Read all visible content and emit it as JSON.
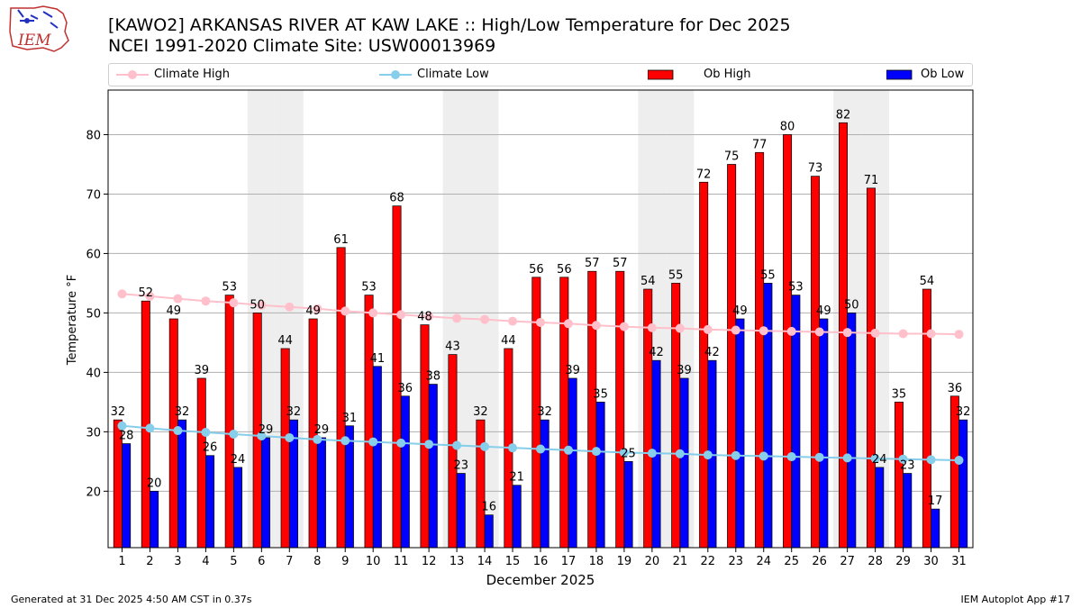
{
  "header": {
    "logo_text": "IEM",
    "title_line1": "[KAWO2] ARKANSAS RIVER  AT KAW LAKE :: High/Low Temperature for Dec 2025",
    "title_line2": "NCEI 1991-2020 Climate Site: USW00013969"
  },
  "legend": {
    "items": [
      {
        "label": "Climate High"
      },
      {
        "label": "Climate Low"
      },
      {
        "label": "Ob High"
      },
      {
        "label": "Ob Low"
      }
    ]
  },
  "footer": {
    "generated": "Generated at 31 Dec 2025 4:50 AM CST in 0.37s",
    "app": "IEM Autoplot App #17"
  },
  "colors": {
    "ob_high": "#ff0000",
    "ob_low": "#0000ff",
    "climate_high": "#ffc0cb",
    "climate_low": "#87ceeb",
    "weekend_shade": "#eeeeee"
  },
  "chart_data": {
    "type": "bar",
    "xlabel": "December 2025",
    "ylabel": "Temperature °F",
    "ylim": [
      10.5,
      87.5
    ],
    "yticks": [
      20,
      30,
      40,
      50,
      60,
      70,
      80
    ],
    "grid": "horizontal",
    "legend_placement": "top",
    "categories": [
      "1",
      "2",
      "3",
      "4",
      "5",
      "6",
      "7",
      "8",
      "9",
      "10",
      "11",
      "12",
      "13",
      "14",
      "15",
      "16",
      "17",
      "18",
      "19",
      "20",
      "21",
      "22",
      "23",
      "24",
      "25",
      "26",
      "27",
      "28",
      "29",
      "30",
      "31"
    ],
    "shaded_days": [
      6,
      7,
      13,
      14,
      20,
      21,
      27,
      28
    ],
    "series": [
      {
        "name": "Ob High",
        "type": "bar",
        "values": [
          32,
          52,
          49,
          39,
          53,
          50,
          44,
          49,
          61,
          53,
          68,
          48,
          43,
          32,
          44,
          56,
          56,
          57,
          57,
          54,
          55,
          72,
          75,
          77,
          80,
          73,
          82,
          71,
          35,
          54,
          36
        ]
      },
      {
        "name": "Ob Low",
        "type": "bar",
        "values": [
          28,
          20,
          32,
          26,
          24,
          29,
          32,
          29,
          31,
          41,
          36,
          38,
          23,
          16,
          21,
          32,
          39,
          35,
          25,
          42,
          39,
          42,
          49,
          55,
          53,
          49,
          50,
          24,
          23,
          17,
          32
        ]
      },
      {
        "name": "Climate High",
        "type": "line",
        "values": [
          53.2,
          52.8,
          52.4,
          52.0,
          51.7,
          51.3,
          51.0,
          50.7,
          50.3,
          50.0,
          49.7,
          49.4,
          49.1,
          48.9,
          48.6,
          48.4,
          48.2,
          47.9,
          47.7,
          47.5,
          47.4,
          47.2,
          47.1,
          47.0,
          46.9,
          46.8,
          46.7,
          46.6,
          46.5,
          46.5,
          46.4
        ]
      },
      {
        "name": "Climate Low",
        "type": "line",
        "values": [
          31.0,
          30.6,
          30.2,
          29.9,
          29.6,
          29.3,
          29.0,
          28.7,
          28.5,
          28.3,
          28.1,
          27.9,
          27.7,
          27.5,
          27.3,
          27.1,
          26.9,
          26.7,
          26.5,
          26.4,
          26.3,
          26.1,
          26.0,
          25.9,
          25.8,
          25.7,
          25.6,
          25.5,
          25.4,
          25.3,
          25.2
        ]
      }
    ]
  }
}
